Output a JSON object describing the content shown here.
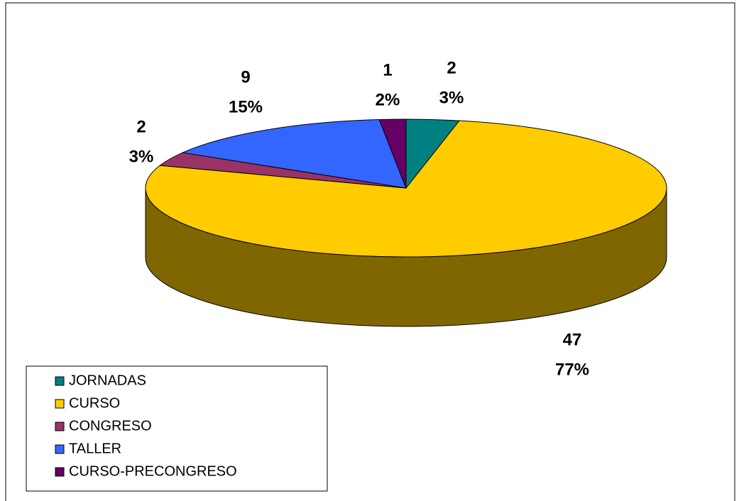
{
  "chart_data": {
    "type": "pie3d",
    "categories": [
      "JORNADAS",
      "CURSO",
      "CONGRESO",
      "TALLER",
      "CURSO-PRECONGRESO"
    ],
    "values": [
      2,
      47,
      2,
      9,
      1
    ],
    "percent_labels": [
      "3%",
      "77%",
      "3%",
      "15%",
      "2%"
    ],
    "colors": [
      "#008080",
      "#FFCC00",
      "#993366",
      "#3366FF",
      "#660066"
    ],
    "side_colors": [
      "#004040",
      "#806600",
      "#4d1a33",
      "#1a3380",
      "#330033"
    ],
    "legend": "bottom-left"
  }
}
